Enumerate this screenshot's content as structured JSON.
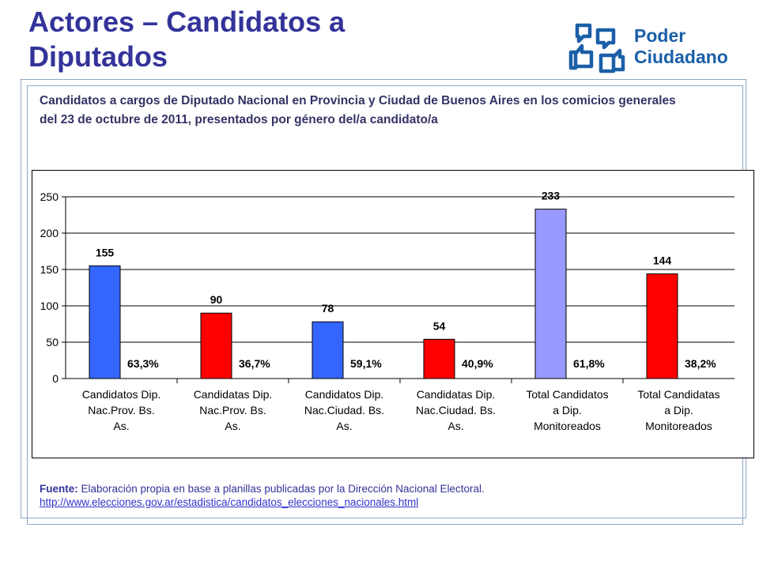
{
  "slide": {
    "title": "Actores – Candidatos a Diputados",
    "subtitle": "Candidatos a cargos de Diputado Nacional en Provincia y Ciudad de Buenos Aires en los comicios generales del 23 de octubre de 2011, presentados por género del/a candidato/a",
    "logo": {
      "line1": "Poder",
      "line2": "Ciudadano",
      "icon": "speech-bubbles-thumbs-icon",
      "color": "#1a5fa8"
    },
    "source": {
      "label": "Fuente:",
      "text": " Elaboración propia en base a planillas publicadas por la Dirección Nacional Electoral.",
      "link": "http://www.elecciones.gov.ar/estadistica/candidatos_elecciones_nacionales.html"
    }
  },
  "chart_data": {
    "type": "bar",
    "title": "",
    "xlabel": "",
    "ylabel": "",
    "ylim": [
      0,
      250
    ],
    "yticks": [
      0,
      50,
      100,
      150,
      200,
      250
    ],
    "grid": true,
    "categories": [
      [
        "Candidatos Dip.",
        "Nac.Prov. Bs.",
        "As."
      ],
      [
        "Candidatas Dip.",
        "Nac.Prov. Bs.",
        "As."
      ],
      [
        "Candidatos Dip.",
        "Nac.Ciudad. Bs.",
        "As."
      ],
      [
        "Candidatas Dip.",
        "Nac.Ciudad. Bs.",
        "As."
      ],
      [
        "Total Candidatos",
        "a Dip.",
        "Monitoreados"
      ],
      [
        "Total Candidatas",
        "a Dip.",
        "Monitoreados"
      ]
    ],
    "values": [
      155,
      90,
      78,
      54,
      233,
      144
    ],
    "value_labels": [
      "155",
      "90",
      "78",
      "54",
      "233",
      "144"
    ],
    "percent_labels": [
      "63,3%",
      "36,7%",
      "59,1%",
      "40,9%",
      "61,8%",
      "38,2%"
    ],
    "colors": [
      "#3366ff",
      "#ff0000",
      "#3366ff",
      "#ff0000",
      "#9999ff",
      "#ff0000"
    ]
  }
}
